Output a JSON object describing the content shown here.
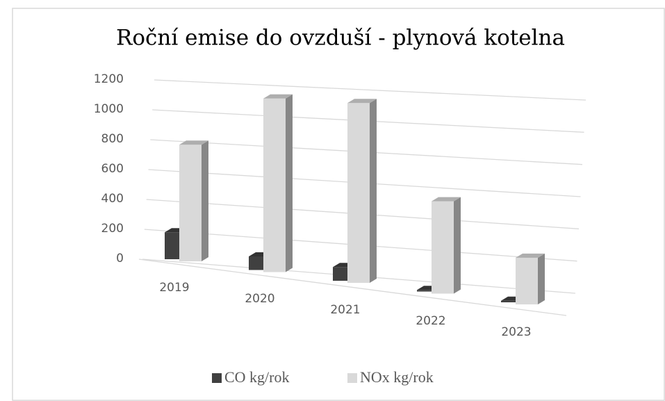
{
  "chart_data": {
    "type": "bar3d",
    "title": "Roční emise do ovzduší - plynová kotelna",
    "categories": [
      "2019",
      "2020",
      "2021",
      "2022",
      "2023"
    ],
    "series": [
      {
        "name": "CO kg/rok",
        "color": "#404040",
        "values": [
          180,
          90,
          90,
          10,
          10
        ]
      },
      {
        "name": "NOx kg/rok",
        "color": "#d9d9d9",
        "values": [
          780,
          1150,
          1180,
          600,
          300
        ]
      }
    ],
    "ylim": [
      0,
      1200
    ],
    "yticks": [
      0,
      200,
      400,
      600,
      800,
      1000,
      1200
    ],
    "grid": true,
    "legend": "bottom"
  }
}
